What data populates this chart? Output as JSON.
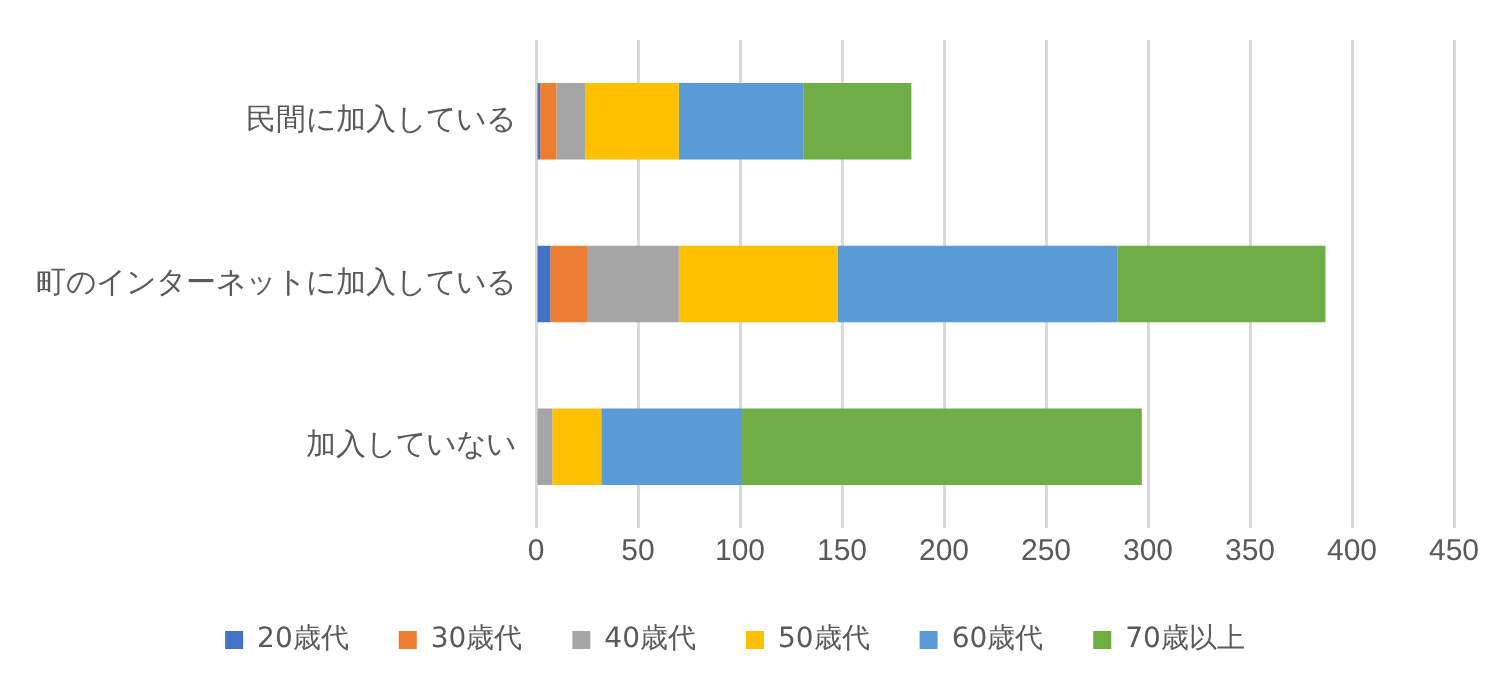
{
  "chart_data": {
    "type": "bar",
    "orientation": "horizontal",
    "stacked": true,
    "categories": [
      "民間に加入している",
      "町のインターネットに加入している",
      "加入していない"
    ],
    "series": [
      {
        "name": "20歳代",
        "color": "#4472c4",
        "values": [
          2,
          7,
          0
        ]
      },
      {
        "name": "30歳代",
        "color": "#ed7d31",
        "values": [
          8,
          18,
          0
        ]
      },
      {
        "name": "40歳代",
        "color": "#a5a5a5",
        "values": [
          14,
          45,
          8
        ]
      },
      {
        "name": "50歳代",
        "color": "#ffc000",
        "values": [
          46,
          78,
          24
        ]
      },
      {
        "name": "60歳代",
        "color": "#5b9bd5",
        "values": [
          61,
          137,
          69
        ]
      },
      {
        "name": "70歳以上",
        "color": "#70ad47",
        "values": [
          53,
          102,
          196
        ]
      }
    ],
    "xlim": [
      0,
      450
    ],
    "xticks": [
      0,
      50,
      100,
      150,
      200,
      250,
      300,
      350,
      400,
      450
    ],
    "grid": "x",
    "legend": "bottom"
  }
}
